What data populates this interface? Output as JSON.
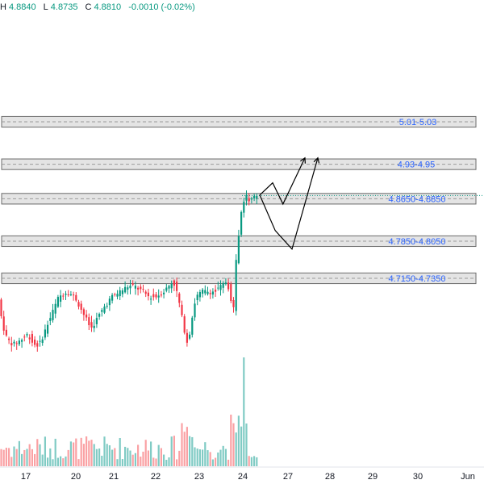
{
  "header": {
    "high_label": "H",
    "high": "4.8840",
    "low_label": "L",
    "low": "4.8735",
    "close_label": "C",
    "close": "4.8810",
    "change": "-0.0010 (-0.02%)"
  },
  "colors": {
    "up": "#089981",
    "down": "#f23645",
    "zone_fill": "#e4e4e4",
    "zone_border": "#6b6b6b",
    "zone_text": "#2962ff",
    "arrow": "#000000",
    "vol_up": "#80cbc4",
    "vol_down": "#faa1a4",
    "price_line": "#089981"
  },
  "chart_data": {
    "type": "candlestick",
    "last_price": 4.881,
    "zones": [
      {
        "label": "5.01-5.03",
        "low": 5.01,
        "high": 5.03
      },
      {
        "label": "4.93-4.95",
        "low": 4.93,
        "high": 4.95
      },
      {
        "label": "4.8650-4.8850",
        "low": 4.865,
        "high": 4.885
      },
      {
        "label": "4.7850-4.8050",
        "low": 4.785,
        "high": 4.805
      },
      {
        "label": "4.7150-4.7350",
        "low": 4.715,
        "high": 4.735
      }
    ],
    "x_ticks": [
      "17",
      "20",
      "21",
      "22",
      "23",
      "24",
      "27",
      "28",
      "29",
      "30",
      "Jun"
    ],
    "projections": [
      {
        "points": [
          [
            0.0,
            4.882
          ],
          [
            1.0,
            4.905
          ],
          [
            1.8,
            4.865
          ],
          [
            3.5,
            4.952
          ]
        ]
      },
      {
        "points": [
          [
            0.0,
            4.882
          ],
          [
            1.2,
            4.815
          ],
          [
            2.5,
            4.78
          ],
          [
            4.5,
            4.952
          ]
        ]
      }
    ]
  }
}
